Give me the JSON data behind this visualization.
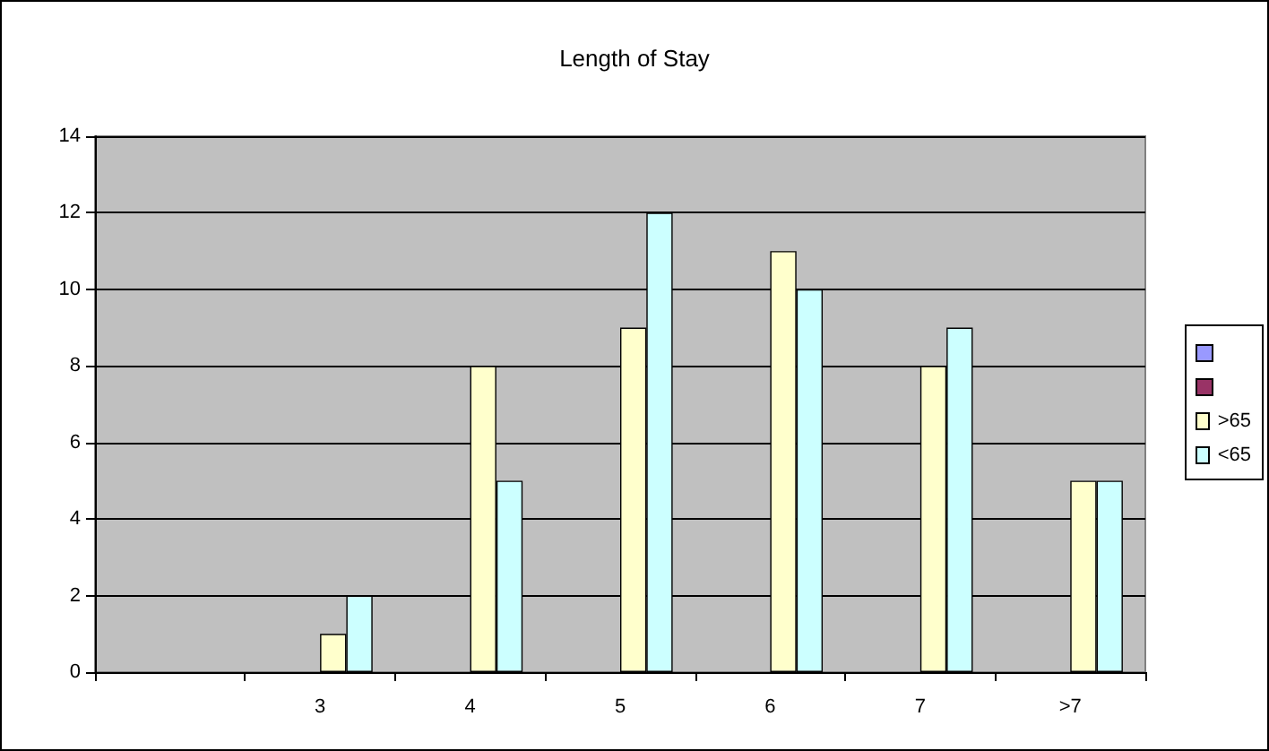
{
  "chart_data": {
    "type": "bar",
    "title": "Length of Stay",
    "categories": [
      null,
      "3",
      "4",
      "5",
      "6",
      "7",
      ">7"
    ],
    "series": [
      {
        "color": "#9999ff",
        "values": [
          null,
          null,
          null,
          null,
          null,
          null,
          null
        ]
      },
      {
        "color": "#993366",
        "values": [
          null,
          null,
          null,
          null,
          null,
          null,
          null
        ]
      },
      {
        "name": ">65",
        "color": "#ffffcc",
        "values": [
          null,
          1,
          8,
          9,
          11,
          8,
          5
        ]
      },
      {
        "name": "<65",
        "color": "#ccffff",
        "values": [
          null,
          2,
          5,
          12,
          10,
          9,
          5
        ]
      }
    ],
    "ylim": [
      0,
      14
    ],
    "yticks": [
      0,
      2,
      4,
      6,
      8,
      10,
      12,
      14
    ],
    "grid": "y",
    "legend": "right"
  }
}
